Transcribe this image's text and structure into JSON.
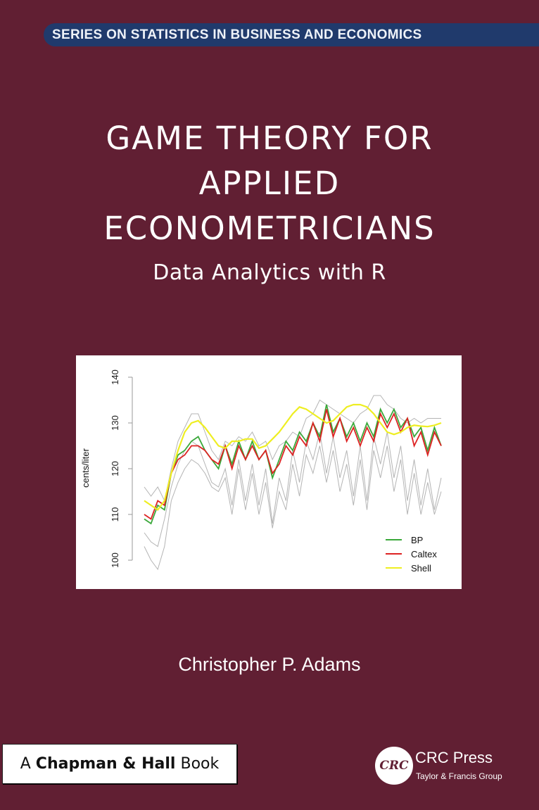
{
  "series_banner": "SERIES ON STATISTICS IN BUSINESS AND ECONOMICS",
  "title_lines": [
    "GAME THEORY FOR",
    "APPLIED",
    "ECONOMETRICIANS"
  ],
  "subtitle": "Data Analytics with R",
  "author": "Christopher P. Adams",
  "imprint": {
    "prefix": "A",
    "name": "Chapman & Hall",
    "suffix": "Book"
  },
  "publisher": {
    "logo_text": "CRC",
    "name": "CRC Press",
    "group": "Taylor & Francis Group"
  },
  "colors": {
    "background": "#611f33",
    "banner": "#203a6c",
    "bp": "#3aa83a",
    "caltex": "#dd2222",
    "shell": "#eeee22",
    "others": "#b4b4b4"
  },
  "chart_data": {
    "type": "line",
    "ylabel": "cents/liter",
    "ylim": [
      100,
      140
    ],
    "yticks": [
      100,
      110,
      120,
      130,
      140
    ],
    "legend_position": "bottom-right",
    "grid": false,
    "series": [
      {
        "values": [
          106,
          104,
          103,
          109,
          116,
          121,
          124,
          126,
          125,
          121,
          117,
          116,
          120,
          112,
          122,
          113,
          121,
          112,
          120,
          108,
          118,
          113,
          124,
          117,
          126,
          122,
          128,
          119,
          127,
          118,
          124,
          114,
          125,
          113,
          127,
          121,
          128,
          118,
          125,
          113,
          122,
          112,
          120,
          111,
          118
        ]
      },
      {
        "values": [
          116,
          114,
          116,
          113,
          120,
          126,
          129,
          132,
          132,
          128,
          124,
          122,
          126,
          125,
          127,
          126,
          128,
          125,
          126,
          122,
          125,
          126,
          128,
          127,
          131,
          132,
          135,
          134,
          133,
          132,
          131,
          130,
          132,
          133,
          136,
          136,
          134,
          133,
          131,
          130,
          131,
          130,
          131,
          131,
          131
        ]
      },
      {
        "values": [
          103,
          100,
          98,
          103,
          113,
          117,
          120,
          122,
          121,
          119,
          116,
          115,
          118,
          110,
          120,
          111,
          119,
          110,
          117,
          107,
          115,
          111,
          121,
          114,
          123,
          119,
          125,
          117,
          124,
          115,
          121,
          112,
          122,
          111,
          124,
          118,
          125,
          115,
          122,
          110,
          119,
          110,
          117,
          110,
          115
        ]
      },
      {
        "name": "BP",
        "color": "#3aa83a",
        "values": [
          109,
          108,
          112,
          111,
          119,
          123,
          124,
          126,
          127,
          124,
          122,
          120,
          125,
          121,
          126,
          122,
          126,
          122,
          124,
          118,
          122,
          126,
          124,
          128,
          126,
          130,
          127,
          134,
          128,
          131,
          127,
          130,
          126,
          130,
          127,
          133,
          130,
          133,
          129,
          131,
          127,
          129,
          124,
          129,
          125
        ]
      },
      {
        "name": "Caltex",
        "color": "#dd2222",
        "values": [
          110,
          109,
          113,
          112,
          119,
          122,
          123,
          125,
          125,
          124,
          122,
          121,
          125,
          120,
          125,
          122,
          125,
          122,
          124,
          119,
          121,
          125,
          123,
          127,
          125,
          130,
          126,
          133,
          127,
          131,
          126,
          129,
          125,
          129,
          126,
          132,
          129,
          132,
          128,
          131,
          125,
          128,
          123,
          128,
          125
        ]
      },
      {
        "name": "Shell",
        "color": "#eeee22",
        "values": [
          113,
          112,
          111,
          113,
          119,
          124,
          128,
          130,
          130.5,
          129,
          127,
          125,
          124.5,
          126,
          126,
          126.5,
          126.5,
          124.5,
          125,
          126.5,
          128,
          130,
          132,
          133.5,
          133,
          132,
          131,
          130,
          130.5,
          132,
          133.5,
          134,
          134,
          133.5,
          132,
          130,
          128,
          127.5,
          128,
          129,
          129.5,
          129.3,
          129.2,
          129.5,
          130
        ]
      }
    ]
  }
}
